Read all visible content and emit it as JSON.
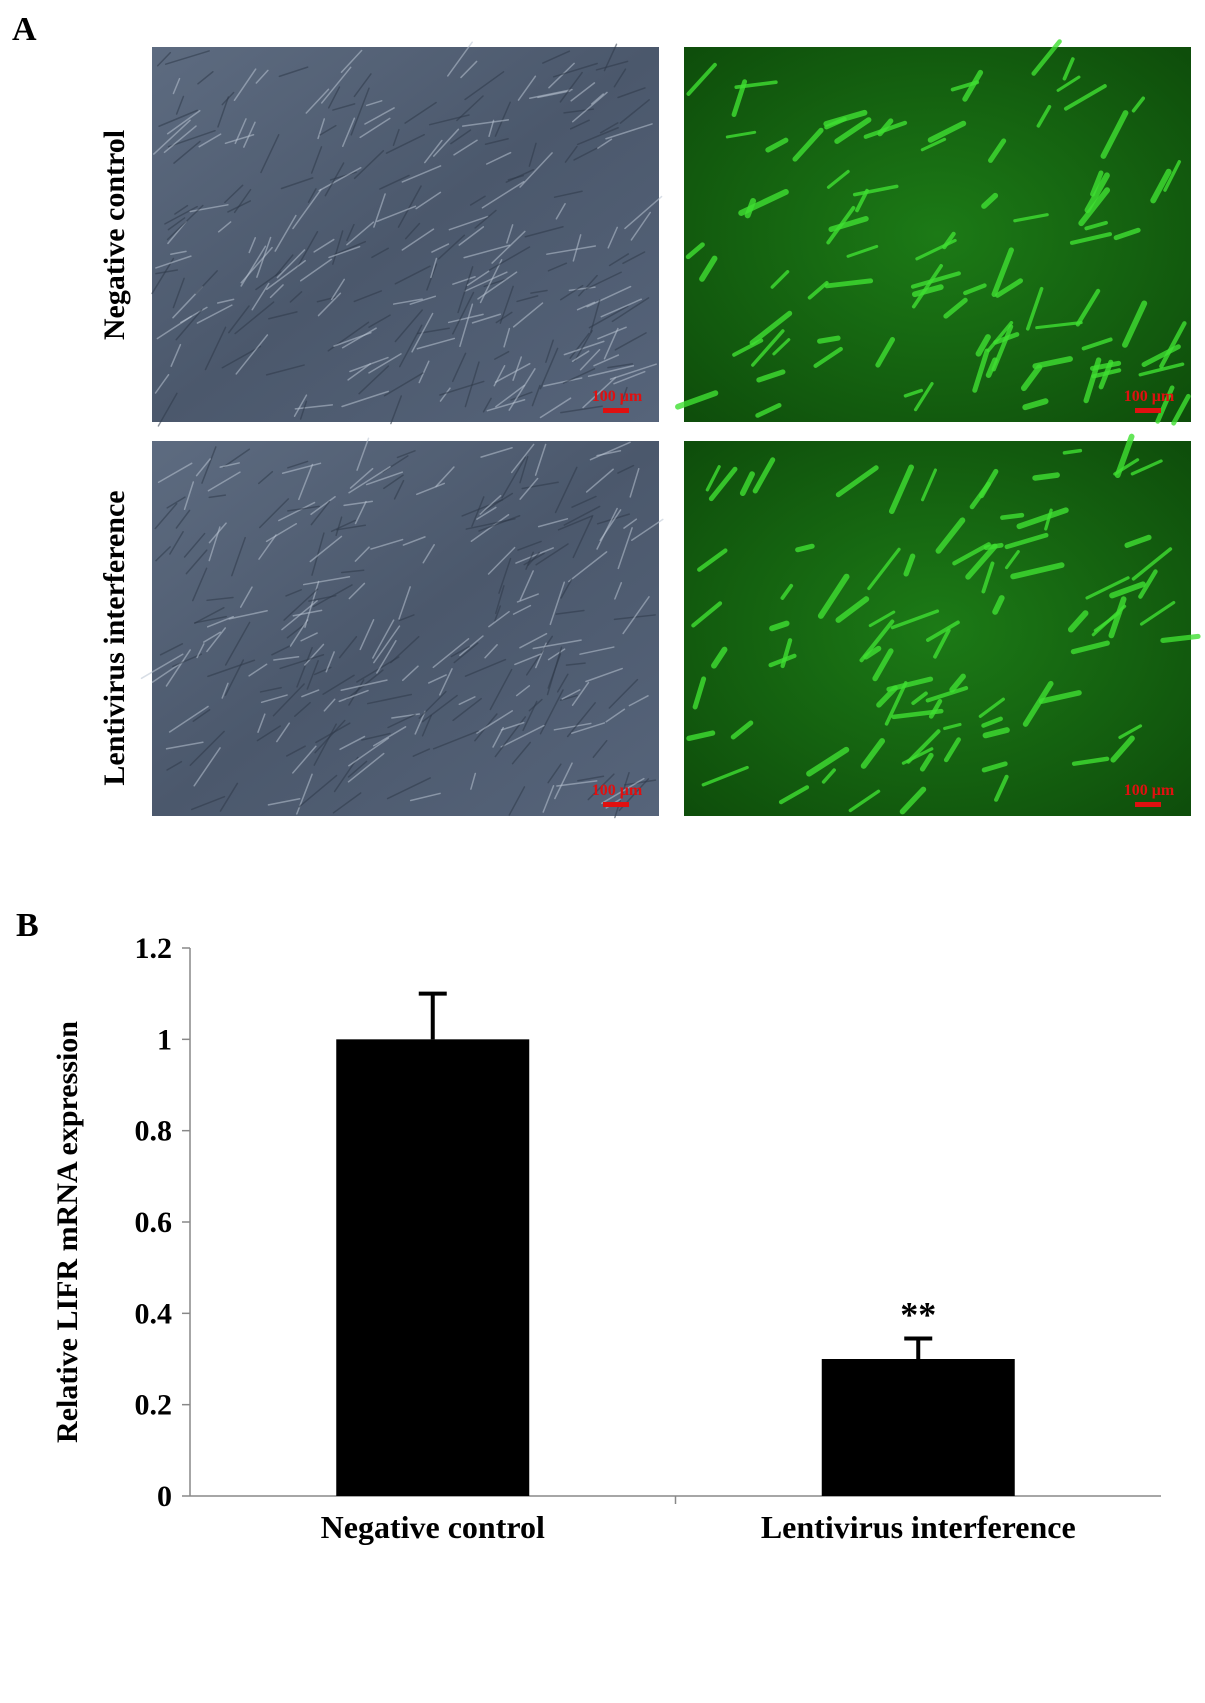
{
  "panel_a": {
    "label": "A",
    "row_labels": [
      "Negative control",
      "Lentivirus interference"
    ],
    "scale_bars": [
      "100 μm",
      "100 μm",
      "100 μm",
      "100 μm"
    ]
  },
  "chart_data": {
    "type": "bar",
    "panel_label": "B",
    "ylabel": "Relative LIFR mRNA expression",
    "categories": [
      "Negative control",
      "Lentivirus interference"
    ],
    "values": [
      1.0,
      0.3
    ],
    "errors": [
      0.1,
      0.045
    ],
    "color": "#000000",
    "annotation": "**",
    "ylim": [
      0,
      1.2
    ],
    "yticks": [
      0,
      0.2,
      0.4,
      0.6,
      0.8,
      1,
      1.2
    ]
  }
}
